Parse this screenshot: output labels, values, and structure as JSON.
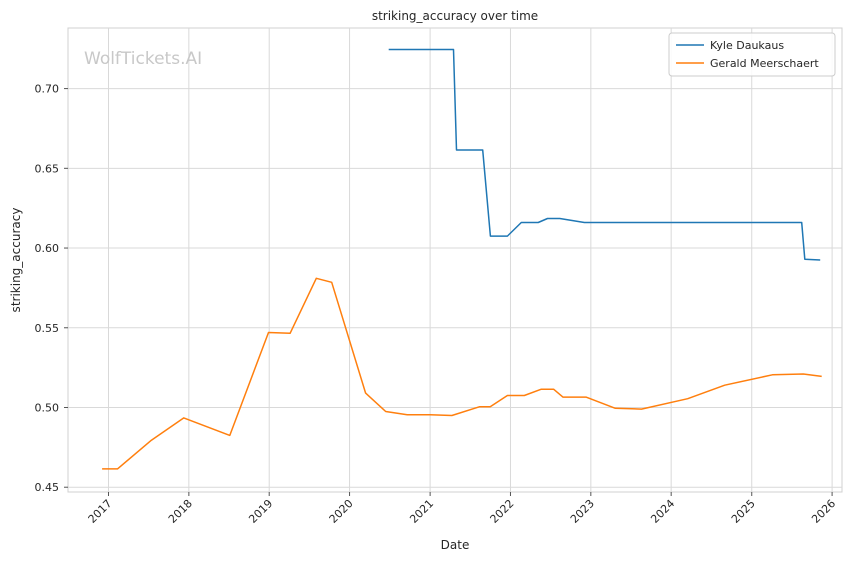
{
  "chart_data": {
    "type": "line",
    "title": "striking_accuracy over time",
    "xlabel": "Date",
    "ylabel": "striking_accuracy",
    "watermark": "WolfTickets.AI",
    "xlim": [
      "2016-07-01",
      "2026-02-15"
    ],
    "ylim": [
      0.447,
      0.738
    ],
    "grid": true,
    "legend_position": "top-right",
    "x_ticks": [
      "2017",
      "2018",
      "2019",
      "2020",
      "2021",
      "2022",
      "2023",
      "2024",
      "2025",
      "2026"
    ],
    "y_ticks": [
      "0.45",
      "0.50",
      "0.55",
      "0.60",
      "0.65",
      "0.70"
    ],
    "series": [
      {
        "name": "Kyle Daukaus",
        "color": "#1f77b4",
        "points": [
          {
            "x": "2020-06-27",
            "y": 0.7245
          },
          {
            "x": "2021-04-17",
            "y": 0.7245
          },
          {
            "x": "2021-05-01",
            "y": 0.6615
          },
          {
            "x": "2021-08-28",
            "y": 0.6615
          },
          {
            "x": "2021-10-02",
            "y": 0.6075
          },
          {
            "x": "2021-12-18",
            "y": 0.6075
          },
          {
            "x": "2022-02-19",
            "y": 0.616
          },
          {
            "x": "2022-05-07",
            "y": 0.616
          },
          {
            "x": "2022-06-18",
            "y": 0.6185
          },
          {
            "x": "2022-08-13",
            "y": 0.6185
          },
          {
            "x": "2022-12-03",
            "y": 0.616
          },
          {
            "x": "2025-08-16",
            "y": 0.616
          },
          {
            "x": "2025-08-30",
            "y": 0.593
          },
          {
            "x": "2025-11-08",
            "y": 0.5925
          }
        ]
      },
      {
        "name": "Gerald Meerschaert",
        "color": "#ff7f0e",
        "points": [
          {
            "x": "2016-12-03",
            "y": 0.4615
          },
          {
            "x": "2017-02-11",
            "y": 0.4615
          },
          {
            "x": "2017-07-15",
            "y": 0.4795
          },
          {
            "x": "2017-12-09",
            "y": 0.4935
          },
          {
            "x": "2018-07-06",
            "y": 0.4825
          },
          {
            "x": "2018-12-29",
            "y": 0.547
          },
          {
            "x": "2019-04-06",
            "y": 0.5465
          },
          {
            "x": "2019-08-03",
            "y": 0.581
          },
          {
            "x": "2019-10-12",
            "y": 0.5785
          },
          {
            "x": "2020-03-14",
            "y": 0.509
          },
          {
            "x": "2020-06-13",
            "y": 0.4975
          },
          {
            "x": "2020-09-19",
            "y": 0.4955
          },
          {
            "x": "2021-01-01",
            "y": 0.4955
          },
          {
            "x": "2021-04-10",
            "y": 0.495
          },
          {
            "x": "2021-08-14",
            "y": 0.5005
          },
          {
            "x": "2021-10-01",
            "y": 0.5005
          },
          {
            "x": "2021-12-18",
            "y": 0.5075
          },
          {
            "x": "2022-03-05",
            "y": 0.5075
          },
          {
            "x": "2022-05-21",
            "y": 0.5115
          },
          {
            "x": "2022-07-16",
            "y": 0.5115
          },
          {
            "x": "2022-08-27",
            "y": 0.5065
          },
          {
            "x": "2022-12-10",
            "y": 0.5065
          },
          {
            "x": "2023-04-22",
            "y": 0.4995
          },
          {
            "x": "2023-08-19",
            "y": 0.499
          },
          {
            "x": "2024-03-16",
            "y": 0.5055
          },
          {
            "x": "2024-08-31",
            "y": 0.514
          },
          {
            "x": "2025-04-05",
            "y": 0.5205
          },
          {
            "x": "2025-08-23",
            "y": 0.521
          },
          {
            "x": "2025-11-15",
            "y": 0.5195
          }
        ]
      }
    ]
  }
}
